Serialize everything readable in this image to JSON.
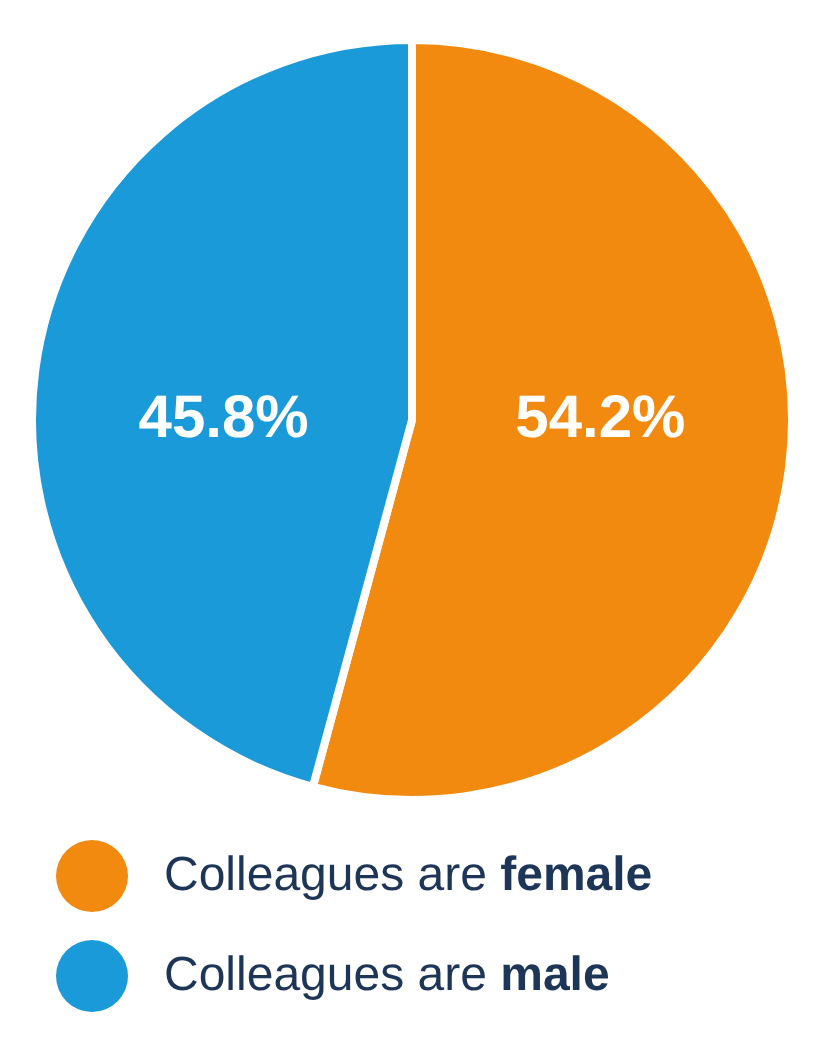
{
  "chart_data": {
    "type": "pie",
    "categories": [
      "Colleagues are female",
      "Colleagues are male"
    ],
    "values": [
      54.2,
      45.8
    ],
    "colors": [
      "#f18a0f",
      "#1a9ad8"
    ],
    "value_labels": [
      "54.2%",
      "45.8%"
    ],
    "legend": "bottom"
  }
}
